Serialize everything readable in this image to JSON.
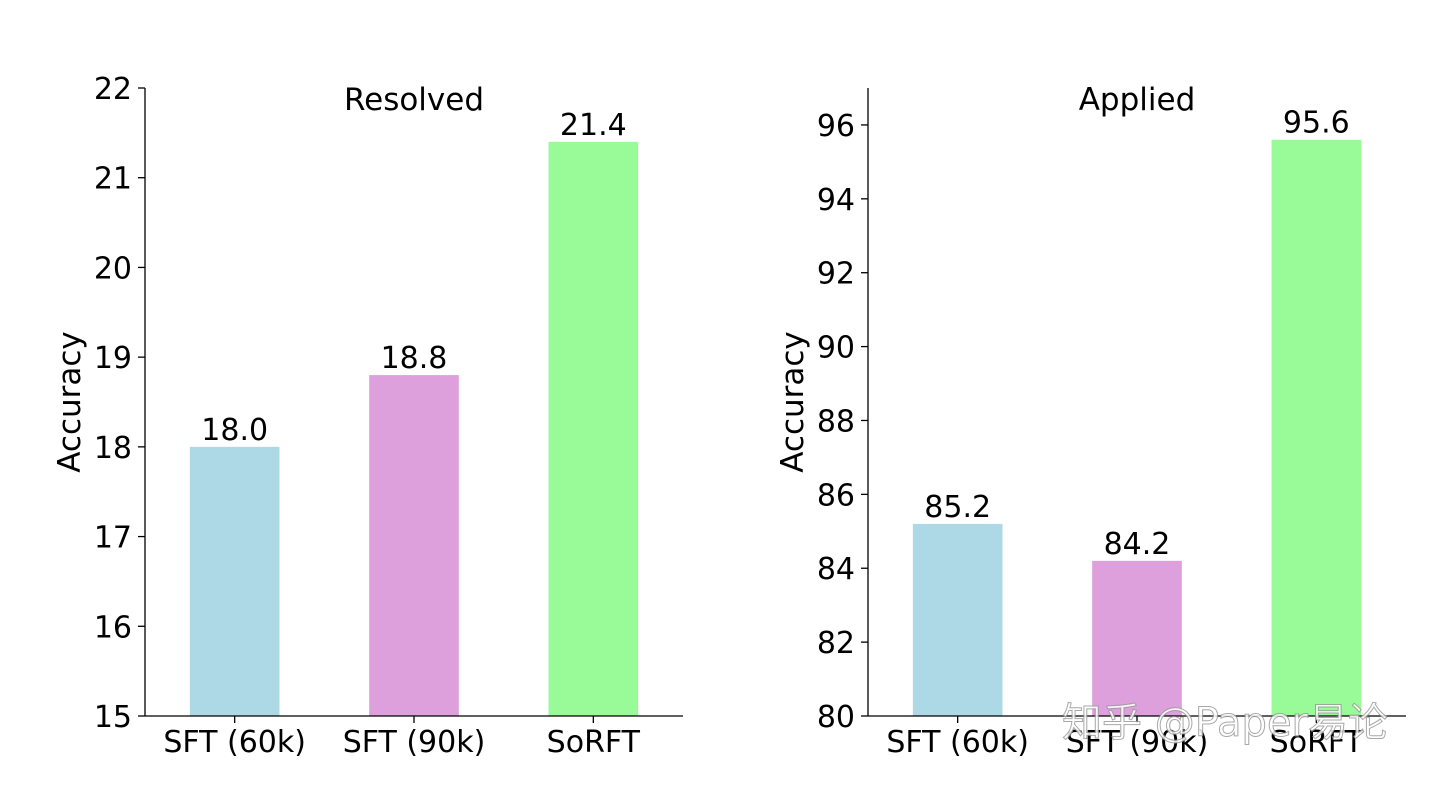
{
  "chart_data": [
    {
      "type": "bar",
      "title": "Resolved",
      "xlabel": "",
      "ylabel": "Accuracy",
      "categories": [
        "SFT (60k)",
        "SFT (90k)",
        "SoRFT"
      ],
      "values": [
        18.0,
        18.8,
        21.4
      ],
      "value_labels": [
        "18.0",
        "18.8",
        "21.4"
      ],
      "bar_colors": [
        "#add8e6",
        "#dda0dd",
        "#98fb98"
      ],
      "ylim": [
        15,
        22
      ],
      "yticks": [
        15,
        16,
        17,
        18,
        19,
        20,
        21,
        22
      ],
      "ytick_labels": [
        "15",
        "16",
        "17",
        "18",
        "19",
        "20",
        "21",
        "22"
      ],
      "grid": false,
      "legend": "none"
    },
    {
      "type": "bar",
      "title": "Applied",
      "xlabel": "",
      "ylabel": "Accuracy",
      "categories": [
        "SFT (60k)",
        "SFT (90k)",
        "SoRFT"
      ],
      "values": [
        85.2,
        84.2,
        95.6
      ],
      "value_labels": [
        "85.2",
        "84.2",
        "95.6"
      ],
      "bar_colors": [
        "#add8e6",
        "#dda0dd",
        "#98fb98"
      ],
      "ylim": [
        80,
        97
      ],
      "yticks": [
        80,
        82,
        84,
        86,
        88,
        90,
        92,
        94,
        96
      ],
      "ytick_labels": [
        "80",
        "82",
        "84",
        "86",
        "88",
        "90",
        "92",
        "94",
        "96"
      ],
      "grid": false,
      "legend": "none"
    }
  ],
  "watermark": {
    "text": "知乎 @Paper易论"
  }
}
